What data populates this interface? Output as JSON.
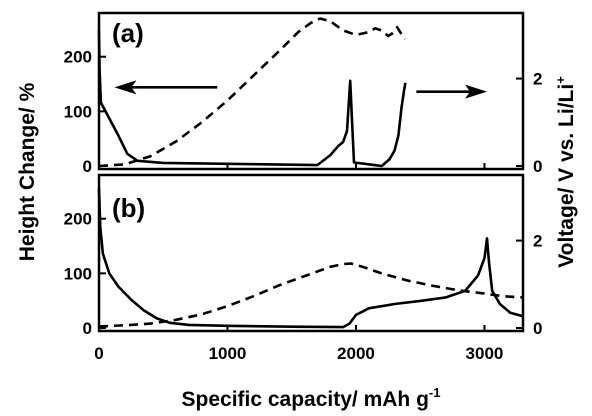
{
  "chart_data": {
    "type": "line",
    "xlabel": "Specific capacity/ mAh g",
    "xlabel_sup": "-1",
    "xlim": [
      0,
      3300
    ],
    "x_ticks": [
      0,
      1000,
      2000,
      3000
    ],
    "left_ylabel": "Height Change/ %",
    "right_ylabel": "Voltage/ V vs. Li/Li",
    "right_ylabel_sup": "+",
    "panels": [
      {
        "label": "(a)",
        "left_ylim": [
          0,
          280
        ],
        "left_ticks": [
          0,
          100,
          200
        ],
        "right_ylim": [
          0,
          3.5
        ],
        "right_ticks": [
          0,
          2
        ],
        "series": [
          {
            "style": "dashed",
            "axis": "left",
            "points": [
              [
                0,
                0
              ],
              [
                200,
                3
              ],
              [
                400,
                18
              ],
              [
                600,
                45
              ],
              [
                800,
                80
              ],
              [
                1000,
                120
              ],
              [
                1200,
                165
              ],
              [
                1400,
                210
              ],
              [
                1550,
                245
              ],
              [
                1650,
                262
              ],
              [
                1720,
                270
              ],
              [
                1800,
                265
              ],
              [
                1900,
                248
              ],
              [
                2000,
                240
              ],
              [
                2100,
                245
              ],
              [
                2150,
                252
              ],
              [
                2200,
                248
              ],
              [
                2250,
                238
              ],
              [
                2280,
                242
              ],
              [
                2320,
                254
              ],
              [
                2350,
                243
              ],
              [
                2380,
                232
              ]
            ]
          },
          {
            "style": "solid",
            "axis": "right",
            "points": [
              [
                0,
                3.1
              ],
              [
                5,
                2.2
              ],
              [
                15,
                1.45
              ],
              [
                60,
                1.2
              ],
              [
                150,
                0.7
              ],
              [
                220,
                0.28
              ],
              [
                300,
                0.12
              ],
              [
                500,
                0.07
              ],
              [
                1000,
                0.05
              ],
              [
                1500,
                0.03
              ],
              [
                1700,
                0.02
              ],
              [
                1800,
                0.25
              ],
              [
                1860,
                0.45
              ],
              [
                1900,
                0.55
              ],
              [
                1930,
                0.8
              ],
              [
                1955,
                1.95
              ],
              [
                1970,
                1.0
              ],
              [
                1985,
                0.08
              ],
              [
                2100,
                0.04
              ],
              [
                2200,
                0.0
              ],
              [
                2260,
                0.15
              ],
              [
                2300,
                0.35
              ],
              [
                2330,
                0.7
              ],
              [
                2355,
                1.35
              ],
              [
                2375,
                1.75
              ],
              [
                2385,
                1.9
              ]
            ]
          }
        ],
        "arrows": [
          {
            "points_to": "left",
            "from": [
              920,
              1.8
            ],
            "to": [
              120,
              1.8
            ]
          },
          {
            "points_to": "right",
            "from": [
              2470,
              1.7
            ],
            "to": [
              3020,
              1.7
            ]
          }
        ]
      },
      {
        "label": "(b)",
        "left_ylim": [
          0,
          280
        ],
        "left_ticks": [
          0,
          100,
          200
        ],
        "right_ylim": [
          0,
          3.5
        ],
        "right_ticks": [
          0,
          2
        ],
        "series": [
          {
            "style": "dashed",
            "axis": "left",
            "points": [
              [
                0,
                3
              ],
              [
                200,
                5
              ],
              [
                400,
                8
              ],
              [
                600,
                15
              ],
              [
                800,
                25
              ],
              [
                1000,
                40
              ],
              [
                1200,
                58
              ],
              [
                1400,
                78
              ],
              [
                1600,
                95
              ],
              [
                1800,
                112
              ],
              [
                1900,
                117
              ],
              [
                1960,
                118
              ],
              [
                2050,
                112
              ],
              [
                2200,
                100
              ],
              [
                2400,
                87
              ],
              [
                2600,
                77
              ],
              [
                2800,
                69
              ],
              [
                3000,
                63
              ],
              [
                3150,
                58
              ],
              [
                3300,
                56
              ]
            ]
          },
          {
            "style": "solid",
            "axis": "right",
            "points": [
              [
                0,
                3.2
              ],
              [
                10,
                2.3
              ],
              [
                30,
                1.7
              ],
              [
                80,
                1.25
              ],
              [
                150,
                0.95
              ],
              [
                250,
                0.65
              ],
              [
                350,
                0.4
              ],
              [
                450,
                0.22
              ],
              [
                550,
                0.12
              ],
              [
                700,
                0.07
              ],
              [
                1000,
                0.05
              ],
              [
                1500,
                0.03
              ],
              [
                1900,
                0.02
              ],
              [
                1950,
                0.1
              ],
              [
                2000,
                0.3
              ],
              [
                2100,
                0.45
              ],
              [
                2300,
                0.55
              ],
              [
                2500,
                0.62
              ],
              [
                2700,
                0.7
              ],
              [
                2850,
                0.85
              ],
              [
                2950,
                1.2
              ],
              [
                3000,
                1.6
              ],
              [
                3020,
                2.05
              ],
              [
                3035,
                1.5
              ],
              [
                3060,
                0.85
              ],
              [
                3120,
                0.55
              ],
              [
                3200,
                0.35
              ],
              [
                3300,
                0.27
              ]
            ]
          }
        ],
        "arrows": []
      }
    ]
  }
}
